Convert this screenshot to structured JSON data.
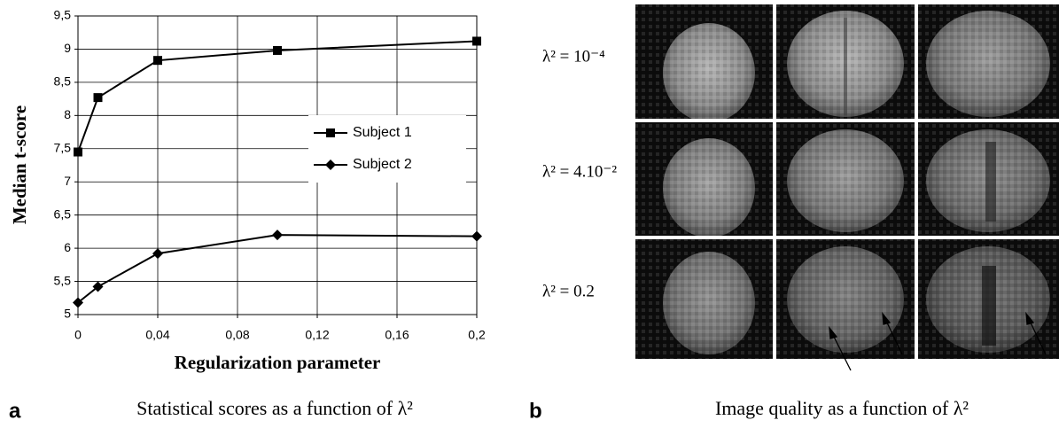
{
  "chart_data": {
    "type": "line",
    "x_label": "Regularization parameter",
    "y_label": "Median t-score",
    "x": [
      0,
      0.01,
      0.04,
      0.1,
      0.2
    ],
    "series": [
      {
        "name": "Subject 1",
        "color": "#000000",
        "marker": "square",
        "values": [
          7.45,
          8.27,
          8.83,
          8.98,
          9.12
        ]
      },
      {
        "name": "Subject 2",
        "color": "#000000",
        "marker": "diamond",
        "values": [
          5.18,
          5.42,
          5.92,
          6.2,
          6.18
        ]
      }
    ],
    "xlim": [
      0,
      0.2
    ],
    "xticks": [
      0,
      {
        "value": 0.04,
        "label": "0,04"
      },
      {
        "value": 0.08,
        "label": "0,08"
      },
      {
        "value": 0.12,
        "label": "0,12"
      },
      {
        "value": 0.16,
        "label": "0,16"
      },
      {
        "value": 0.2,
        "label": "0,2"
      }
    ],
    "ylim": [
      5,
      9.5
    ],
    "yticks": [
      5,
      {
        "value": 5.5,
        "label": "5,5"
      },
      6,
      {
        "value": 6.5,
        "label": "6,5"
      },
      7,
      {
        "value": 7.5,
        "label": "7,5"
      },
      8,
      {
        "value": 8.5,
        "label": "8,5"
      },
      9,
      {
        "value": 9.5,
        "label": "9,5"
      }
    ],
    "grid": true,
    "legend": "right"
  },
  "panel_a": {
    "letter": "a",
    "caption": "Statistical scores as a function of λ²"
  },
  "panel_b": {
    "letter": "b",
    "caption": "Image quality as a function of λ²",
    "row_labels": [
      "λ² = 10⁻⁴",
      "λ² = 4.10⁻²",
      "λ² = 0.2"
    ]
  }
}
